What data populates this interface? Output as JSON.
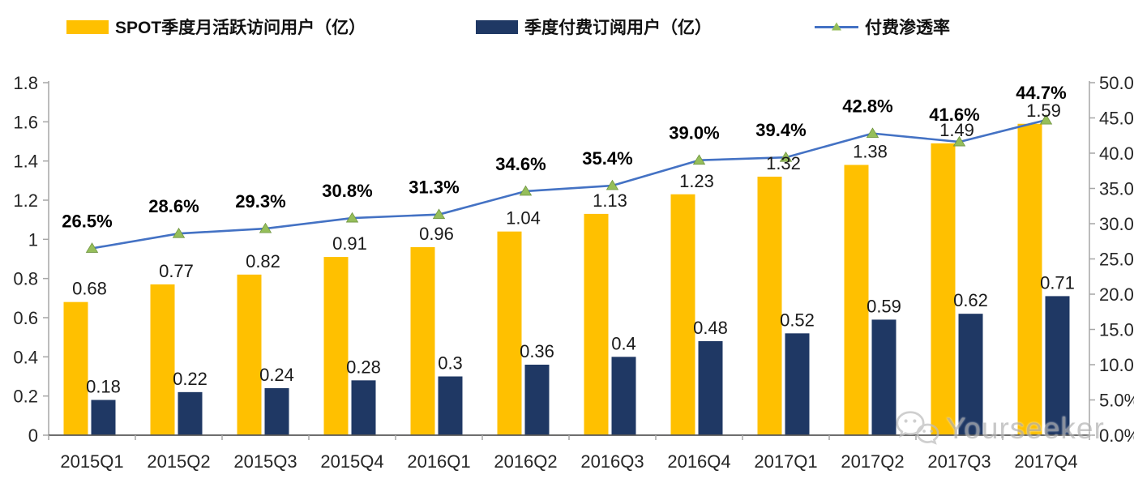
{
  "legend": {
    "mau": "SPOT季度月活跃访问用户（亿）",
    "subs": "季度付费订阅用户（亿）",
    "penetration": "付费渗透率"
  },
  "watermark": {
    "text": "Yourseeker",
    "icon": "wechat-icon"
  },
  "chart_data": {
    "type": "bar",
    "subtype": "clustered-bars-with-line-combo",
    "title": "",
    "categories": [
      "2015Q1",
      "2015Q2",
      "2015Q3",
      "2015Q4",
      "2016Q1",
      "2016Q2",
      "2016Q3",
      "2016Q4",
      "2017Q1",
      "2017Q2",
      "2017Q3",
      "2017Q4"
    ],
    "series": [
      {
        "name": "SPOT季度月活跃访问用户（亿）",
        "type": "bar",
        "axis": "left",
        "color": "#FFC000",
        "values": [
          0.68,
          0.77,
          0.82,
          0.91,
          0.96,
          1.04,
          1.13,
          1.23,
          1.32,
          1.38,
          1.49,
          1.59
        ],
        "labels": [
          "0.68",
          "0.77",
          "0.82",
          "0.91",
          "0.96",
          "1.04",
          "1.13",
          "1.23",
          "1.32",
          "1.38",
          "1.49",
          "1.59"
        ]
      },
      {
        "name": "季度付费订阅用户（亿）",
        "type": "bar",
        "axis": "left",
        "color": "#1F3864",
        "values": [
          0.18,
          0.22,
          0.24,
          0.28,
          0.3,
          0.36,
          0.4,
          0.48,
          0.52,
          0.59,
          0.62,
          0.71
        ],
        "labels": [
          "0.18",
          "0.22",
          "0.24",
          "0.28",
          "0.3",
          "0.36",
          "0.4",
          "0.48",
          "0.52",
          "0.59",
          "0.62",
          "0.71"
        ]
      },
      {
        "name": "付费渗透率",
        "type": "line",
        "axis": "right",
        "color": "#4472C4",
        "marker": "triangle",
        "marker_color": "#95BE5A",
        "marker_edge_color": "#6f9440",
        "values": [
          26.5,
          28.6,
          29.3,
          30.8,
          31.3,
          34.6,
          35.4,
          39.0,
          39.4,
          42.8,
          41.6,
          44.7
        ],
        "labels": [
          "26.5%",
          "28.6%",
          "29.3%",
          "30.8%",
          "31.3%",
          "34.6%",
          "35.4%",
          "39.0%",
          "39.4%",
          "42.8%",
          "41.6%",
          "44.7%"
        ]
      }
    ],
    "axes": {
      "left": {
        "min": 0,
        "max": 1.8,
        "step": 0.2,
        "tick_labels": [
          "0",
          "0.2",
          "0.4",
          "0.6",
          "0.8",
          "1",
          "1.2",
          "1.4",
          "1.6",
          "1.8"
        ]
      },
      "right": {
        "min": 0,
        "max": 50,
        "step": 5,
        "tick_labels": [
          "0.0%",
          "5.0%",
          "10.0%",
          "15.0%",
          "20.0%",
          "25.0%",
          "30.0%",
          "35.0%",
          "40.0%",
          "45.0%",
          "50.0%"
        ]
      }
    },
    "grid": false,
    "legend_position": "top",
    "colors": {
      "axis_line": "#A6A6A6",
      "baseline": "#595959",
      "text": "#262626"
    }
  }
}
